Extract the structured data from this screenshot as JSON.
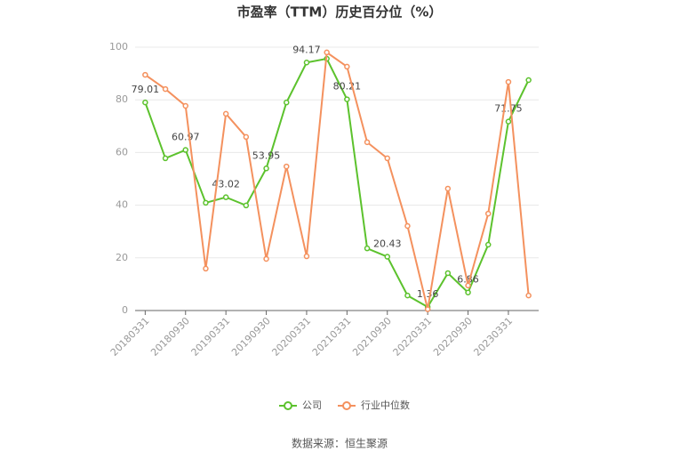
{
  "chart_data": {
    "type": "line",
    "title": "市盈率（TTM）历史百分位（%）",
    "source": "数据来源：恒生聚源",
    "categories": [
      "20180331",
      null,
      "20180930",
      null,
      "20190331",
      null,
      "20190930",
      null,
      "20200331",
      null,
      "20210331",
      null,
      "20210930",
      null,
      "20220331",
      null,
      "20220930",
      null,
      "20230331",
      null
    ],
    "series": [
      {
        "name": "公司",
        "color": "#5cc22d",
        "values": [
          79.01,
          57.8,
          60.97,
          40.9,
          43.02,
          39.9,
          53.95,
          79,
          94.17,
          95.6,
          80.21,
          23.6,
          20.43,
          5.7,
          1.36,
          14.2,
          6.86,
          25,
          71.75,
          87.5
        ]
      },
      {
        "name": "行业中位数",
        "color": "#f4915e",
        "values": [
          89.5,
          84.1,
          77.7,
          15.9,
          74.7,
          65.9,
          19.6,
          54.7,
          20.6,
          98,
          92.6,
          63.9,
          57.8,
          32.1,
          0.5,
          46.3,
          9.5,
          36.8,
          86.8,
          5.7
        ]
      }
    ],
    "ylim": [
      0,
      100
    ],
    "yticks": [
      0,
      20,
      40,
      60,
      80,
      100
    ],
    "grid": true
  }
}
